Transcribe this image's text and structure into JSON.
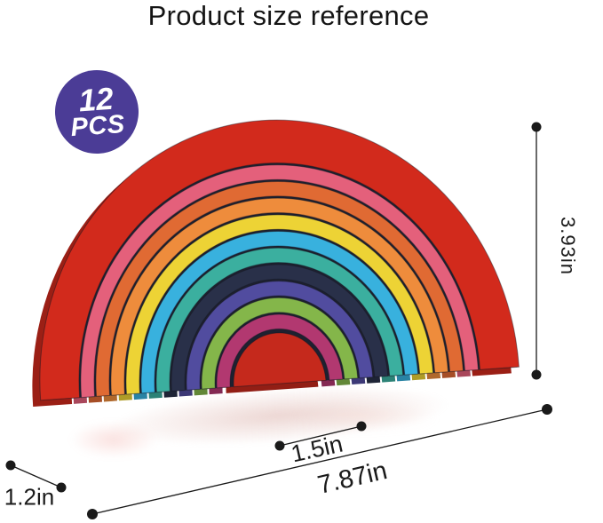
{
  "title": "Product size reference",
  "badge": {
    "count": "12",
    "unit": "PCS",
    "bg_color": "#4B3C96",
    "text_color": "#FFFFFF"
  },
  "toy": {
    "description": "wooden rainbow stacker with 12 nested arch pieces",
    "seam_color": "#1E2130",
    "pieces": [
      {
        "name": "red-outer",
        "color": "#D22A1C"
      },
      {
        "name": "pink",
        "color": "#E4607B"
      },
      {
        "name": "red-orange",
        "color": "#E06A33"
      },
      {
        "name": "orange",
        "color": "#EE8C3C"
      },
      {
        "name": "yellow",
        "color": "#EDD335"
      },
      {
        "name": "sky-blue",
        "color": "#38B1DE"
      },
      {
        "name": "teal",
        "color": "#3BAF9F"
      },
      {
        "name": "navy",
        "color": "#293049"
      },
      {
        "name": "indigo",
        "color": "#514C9F"
      },
      {
        "name": "green",
        "color": "#84B64A"
      },
      {
        "name": "magenta",
        "color": "#B23870"
      },
      {
        "name": "red-inner",
        "color": "#C5291C"
      }
    ]
  },
  "dimensions": {
    "height": "3.93in",
    "inner_width": "1.5in",
    "total_width": "7.87in",
    "depth": "1.2in"
  },
  "colors": {
    "line": "#1A1A1A",
    "text": "#1A1A1A",
    "background": "#FFFFFF"
  }
}
